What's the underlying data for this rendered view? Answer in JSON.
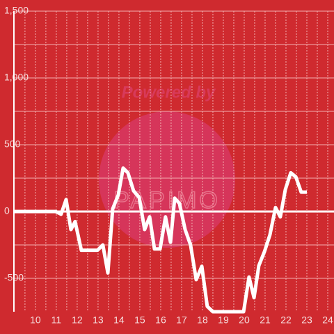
{
  "chart_data": {
    "type": "line",
    "watermark": "Powered by",
    "watermark_logo": "PAPIMO",
    "x": [
      8.97,
      10.97,
      11.23,
      11.47,
      11.7,
      11.9,
      12.2,
      12.97,
      13.23,
      13.47,
      13.7,
      13.97,
      14.2,
      14.43,
      14.7,
      14.97,
      15.23,
      15.47,
      15.7,
      15.97,
      16.23,
      16.47,
      16.67,
      16.9,
      17.17,
      17.43,
      17.7,
      17.97,
      18.23,
      18.5,
      19.97,
      20.23,
      20.47,
      20.7,
      20.97,
      21.23,
      21.5,
      21.73,
      21.97,
      22.23,
      22.47,
      22.73,
      23.0
    ],
    "series": [
      {
        "color": "#ffffff",
        "values": [
          0,
          0,
          -20,
          90,
          -135,
          -75,
          -290,
          -290,
          -250,
          -460,
          20,
          125,
          325,
          290,
          155,
          105,
          -135,
          -40,
          -280,
          -280,
          -40,
          -230,
          100,
          60,
          -135,
          -250,
          -510,
          -410,
          -710,
          -750,
          -750,
          -490,
          -645,
          -405,
          -300,
          -175,
          30,
          -40,
          165,
          290,
          260,
          145,
          145
        ]
      }
    ],
    "xlim": [
      8.97,
      24.3
    ],
    "xticks": [
      10,
      11,
      12,
      13,
      14,
      15,
      16,
      17,
      18,
      19,
      20,
      21,
      22,
      23,
      24
    ],
    "ylim": [
      -750,
      1500
    ],
    "yticks": [
      -500,
      0,
      500,
      {
        "value": 1000,
        "label": "1,000"
      },
      {
        "value": 1500,
        "label": "1,500"
      }
    ],
    "grid": true
  }
}
